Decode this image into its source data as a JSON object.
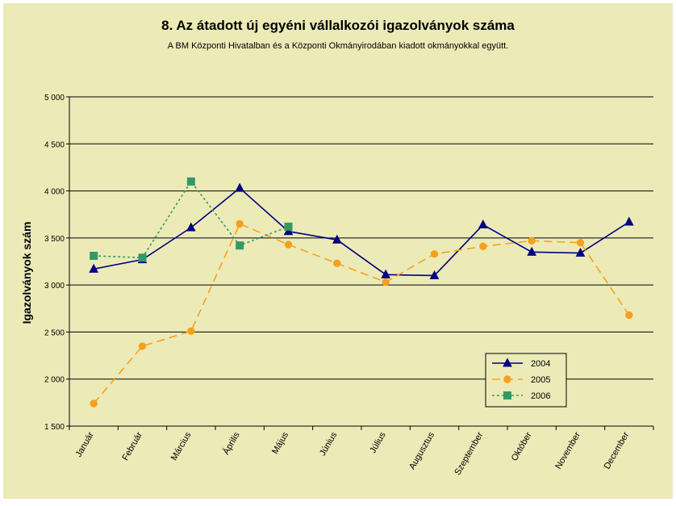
{
  "chart_data": {
    "type": "line",
    "title": "8. Az átadott új egyéni vállalkozói  igazolványok száma",
    "subtitle": "A BM Központi Hivatalban és a Központi Okmányirodában kiadott okmányokkal együtt.",
    "ylabel": "Igazolványok szám",
    "xlabel": "",
    "categories": [
      "Január",
      "Február",
      "Március",
      "Április",
      "Május",
      "Június",
      "Július",
      "Augusztus",
      "Szeptember",
      "Október",
      "November",
      "December"
    ],
    "ylim": [
      1500,
      5000
    ],
    "yticks": [
      1500,
      2000,
      2500,
      3000,
      3500,
      4000,
      4500,
      5000
    ],
    "ytick_labels": [
      "1 500",
      "2 000",
      "2 500",
      "3 000",
      "3 500",
      "4 000",
      "4 500",
      "5 000"
    ],
    "grid": true,
    "legend_position": "bottom-right",
    "colors": {
      "background": "#ecebb8",
      "plot_background": "#ecebb8",
      "gridline": "#000000",
      "series_2004": "#000080",
      "series_2005": "#f5a11c",
      "series_2006": "#339966"
    },
    "series": [
      {
        "name": "2004",
        "style": "solid",
        "marker": "triangle",
        "color": "#000080",
        "values": [
          3170,
          3270,
          3610,
          4030,
          3570,
          3480,
          3110,
          3100,
          3640,
          3350,
          3340,
          3670
        ]
      },
      {
        "name": "2005",
        "style": "dashed",
        "marker": "circle",
        "color": "#f5a11c",
        "values": [
          1740,
          2350,
          2510,
          3650,
          3430,
          3230,
          3030,
          3330,
          3410,
          3470,
          3450,
          2680
        ]
      },
      {
        "name": "2006",
        "style": "dotted",
        "marker": "square",
        "color": "#339966",
        "values": [
          3310,
          3290,
          4100,
          3420,
          3620,
          null,
          null,
          null,
          null,
          null,
          null,
          null
        ]
      }
    ]
  }
}
